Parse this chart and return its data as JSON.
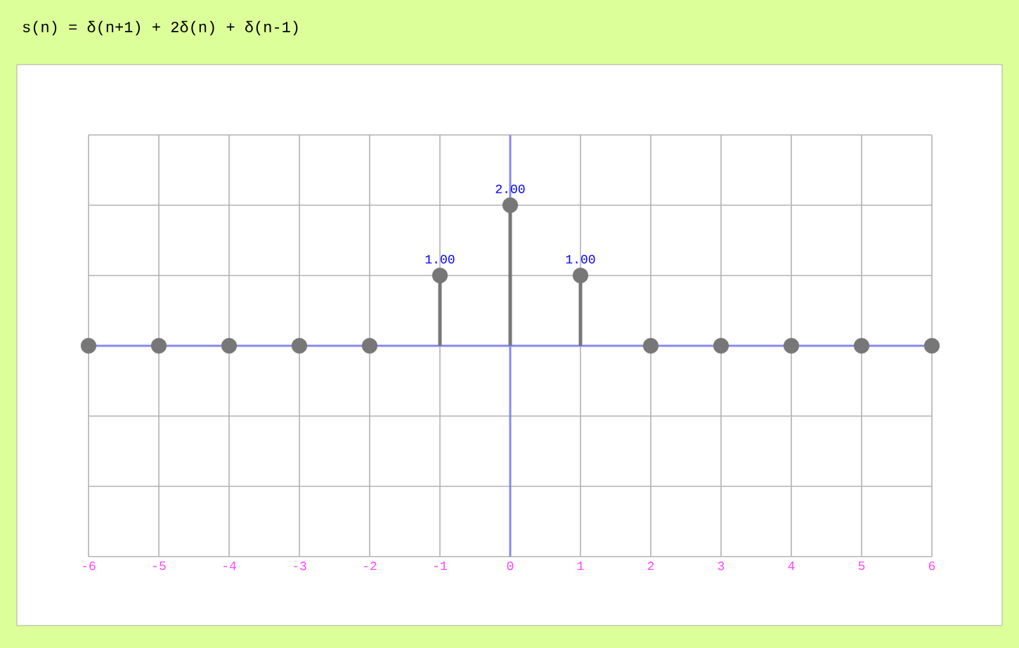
{
  "chart_data": {
    "type": "lollipop",
    "title": "s(n) = δ(n+1) + 2δ(n) + δ(n-1)",
    "x": [
      -6,
      -5,
      -4,
      -3,
      -2,
      -1,
      0,
      1,
      2,
      3,
      4,
      5,
      6
    ],
    "values": [
      0,
      0,
      0,
      0,
      0,
      1,
      2,
      1,
      0,
      0,
      0,
      0,
      0
    ],
    "value_labels": [
      null,
      null,
      null,
      null,
      null,
      "1.00",
      "2.00",
      "1.00",
      null,
      null,
      null,
      null,
      null
    ],
    "color": "#777777",
    "xlim": [
      -6,
      6
    ],
    "xticks": [
      -6,
      -5,
      -4,
      -3,
      -2,
      -1,
      0,
      1,
      2,
      3,
      4,
      5,
      6
    ],
    "ylim": [
      -3,
      3
    ],
    "yticks": [
      {
        "value": -3,
        "label": null
      },
      {
        "value": -2,
        "label": null
      },
      {
        "value": -1,
        "label": null
      },
      {
        "value": 0,
        "label": null
      },
      {
        "value": 1,
        "label": null
      },
      {
        "value": 2,
        "label": null
      },
      {
        "value": 3,
        "label": null
      }
    ],
    "tick_labels": "x",
    "grid": true,
    "marker": "circle"
  }
}
